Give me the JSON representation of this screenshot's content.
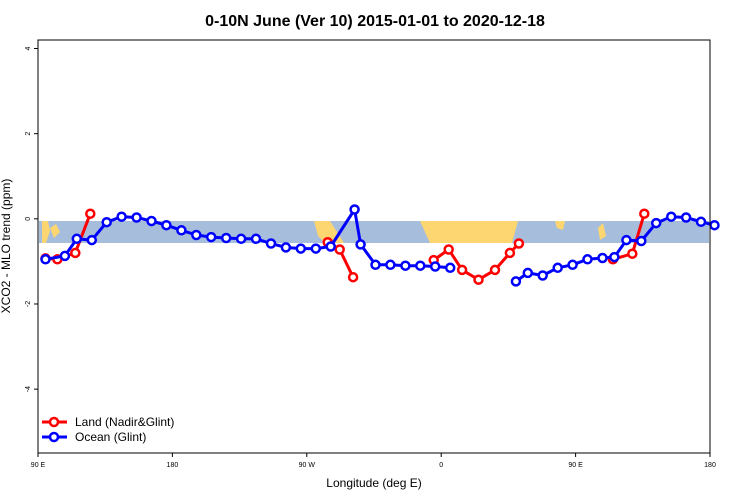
{
  "chart_data": {
    "type": "line",
    "title": "0-10N June (Ver 10)   2015-01-01 to 2020-12-18",
    "xlabel": "Longitude (deg E)",
    "ylabel": "XCO2 - MLO trend (ppm)",
    "xlim": [
      90,
      540
    ],
    "ylim": [
      -5.5,
      4.2
    ],
    "x_ticks": [
      {
        "value": 90,
        "label": "90 E"
      },
      {
        "value": 180,
        "label": "180"
      },
      {
        "value": 270,
        "label": "90 W"
      },
      {
        "value": 360,
        "label": "0"
      },
      {
        "value": 450,
        "label": "90 E"
      },
      {
        "value": 540,
        "label": "180"
      }
    ],
    "y_ticks": [
      {
        "value": 4,
        "label": "4"
      },
      {
        "value": 2,
        "label": "2"
      },
      {
        "value": 0,
        "label": "0"
      },
      {
        "value": -2,
        "label": "-2"
      },
      {
        "value": -4,
        "label": "-4"
      }
    ],
    "colors": {
      "land": "#ff0000",
      "ocean": "#0000ff",
      "map_ocean": "#a6bddb",
      "map_land": "#fdd671"
    },
    "series": [
      {
        "name": "Land (Nadir&Glint)",
        "color": "#ff0000",
        "segments": [
          [
            [
              95,
              -0.93
            ],
            [
              103,
              -0.95
            ],
            [
              115,
              -0.8
            ],
            [
              125,
              0.12
            ]
          ],
          [
            [
              284,
              -0.55
            ],
            [
              292,
              -0.72
            ],
            [
              301,
              -1.37
            ]
          ],
          [
            [
              355,
              -0.97
            ],
            [
              365,
              -0.72
            ],
            [
              374,
              -1.2
            ],
            [
              385,
              -1.43
            ],
            [
              396,
              -1.2
            ],
            [
              406,
              -0.8
            ],
            [
              412,
              -0.58
            ]
          ],
          [
            [
              475,
              -0.95
            ],
            [
              488,
              -0.82
            ],
            [
              496,
              0.12
            ]
          ]
        ]
      },
      {
        "name": "Ocean (Glint)",
        "color": "#0000ff",
        "segments": [
          [
            [
              95,
              -0.95
            ],
            [
              108,
              -0.87
            ],
            [
              116,
              -0.47
            ],
            [
              126,
              -0.5
            ],
            [
              136,
              -0.08
            ],
            [
              146,
              0.05
            ],
            [
              156,
              0.03
            ],
            [
              166,
              -0.05
            ],
            [
              176,
              -0.15
            ],
            [
              186,
              -0.27
            ],
            [
              196,
              -0.38
            ],
            [
              206,
              -0.43
            ],
            [
              216,
              -0.45
            ],
            [
              226,
              -0.47
            ],
            [
              236,
              -0.47
            ],
            [
              246,
              -0.58
            ],
            [
              256,
              -0.67
            ],
            [
              266,
              -0.7
            ],
            [
              276,
              -0.7
            ],
            [
              286,
              -0.65
            ],
            [
              302,
              0.22
            ],
            [
              306,
              -0.6
            ],
            [
              316,
              -1.08
            ],
            [
              326,
              -1.08
            ],
            [
              336,
              -1.1
            ],
            [
              346,
              -1.1
            ],
            [
              356,
              -1.12
            ],
            [
              366,
              -1.15
            ]
          ],
          [
            [
              410,
              -1.47
            ],
            [
              418,
              -1.27
            ],
            [
              428,
              -1.33
            ],
            [
              438,
              -1.15
            ],
            [
              448,
              -1.08
            ],
            [
              458,
              -0.95
            ],
            [
              468,
              -0.92
            ],
            [
              476,
              -0.9
            ],
            [
              484,
              -0.5
            ],
            [
              494,
              -0.52
            ],
            [
              504,
              -0.1
            ],
            [
              514,
              0.05
            ],
            [
              524,
              0.03
            ],
            [
              534,
              -0.07
            ],
            [
              543,
              -0.15
            ]
          ]
        ]
      }
    ],
    "legend": {
      "placement": "bottom-left"
    }
  }
}
